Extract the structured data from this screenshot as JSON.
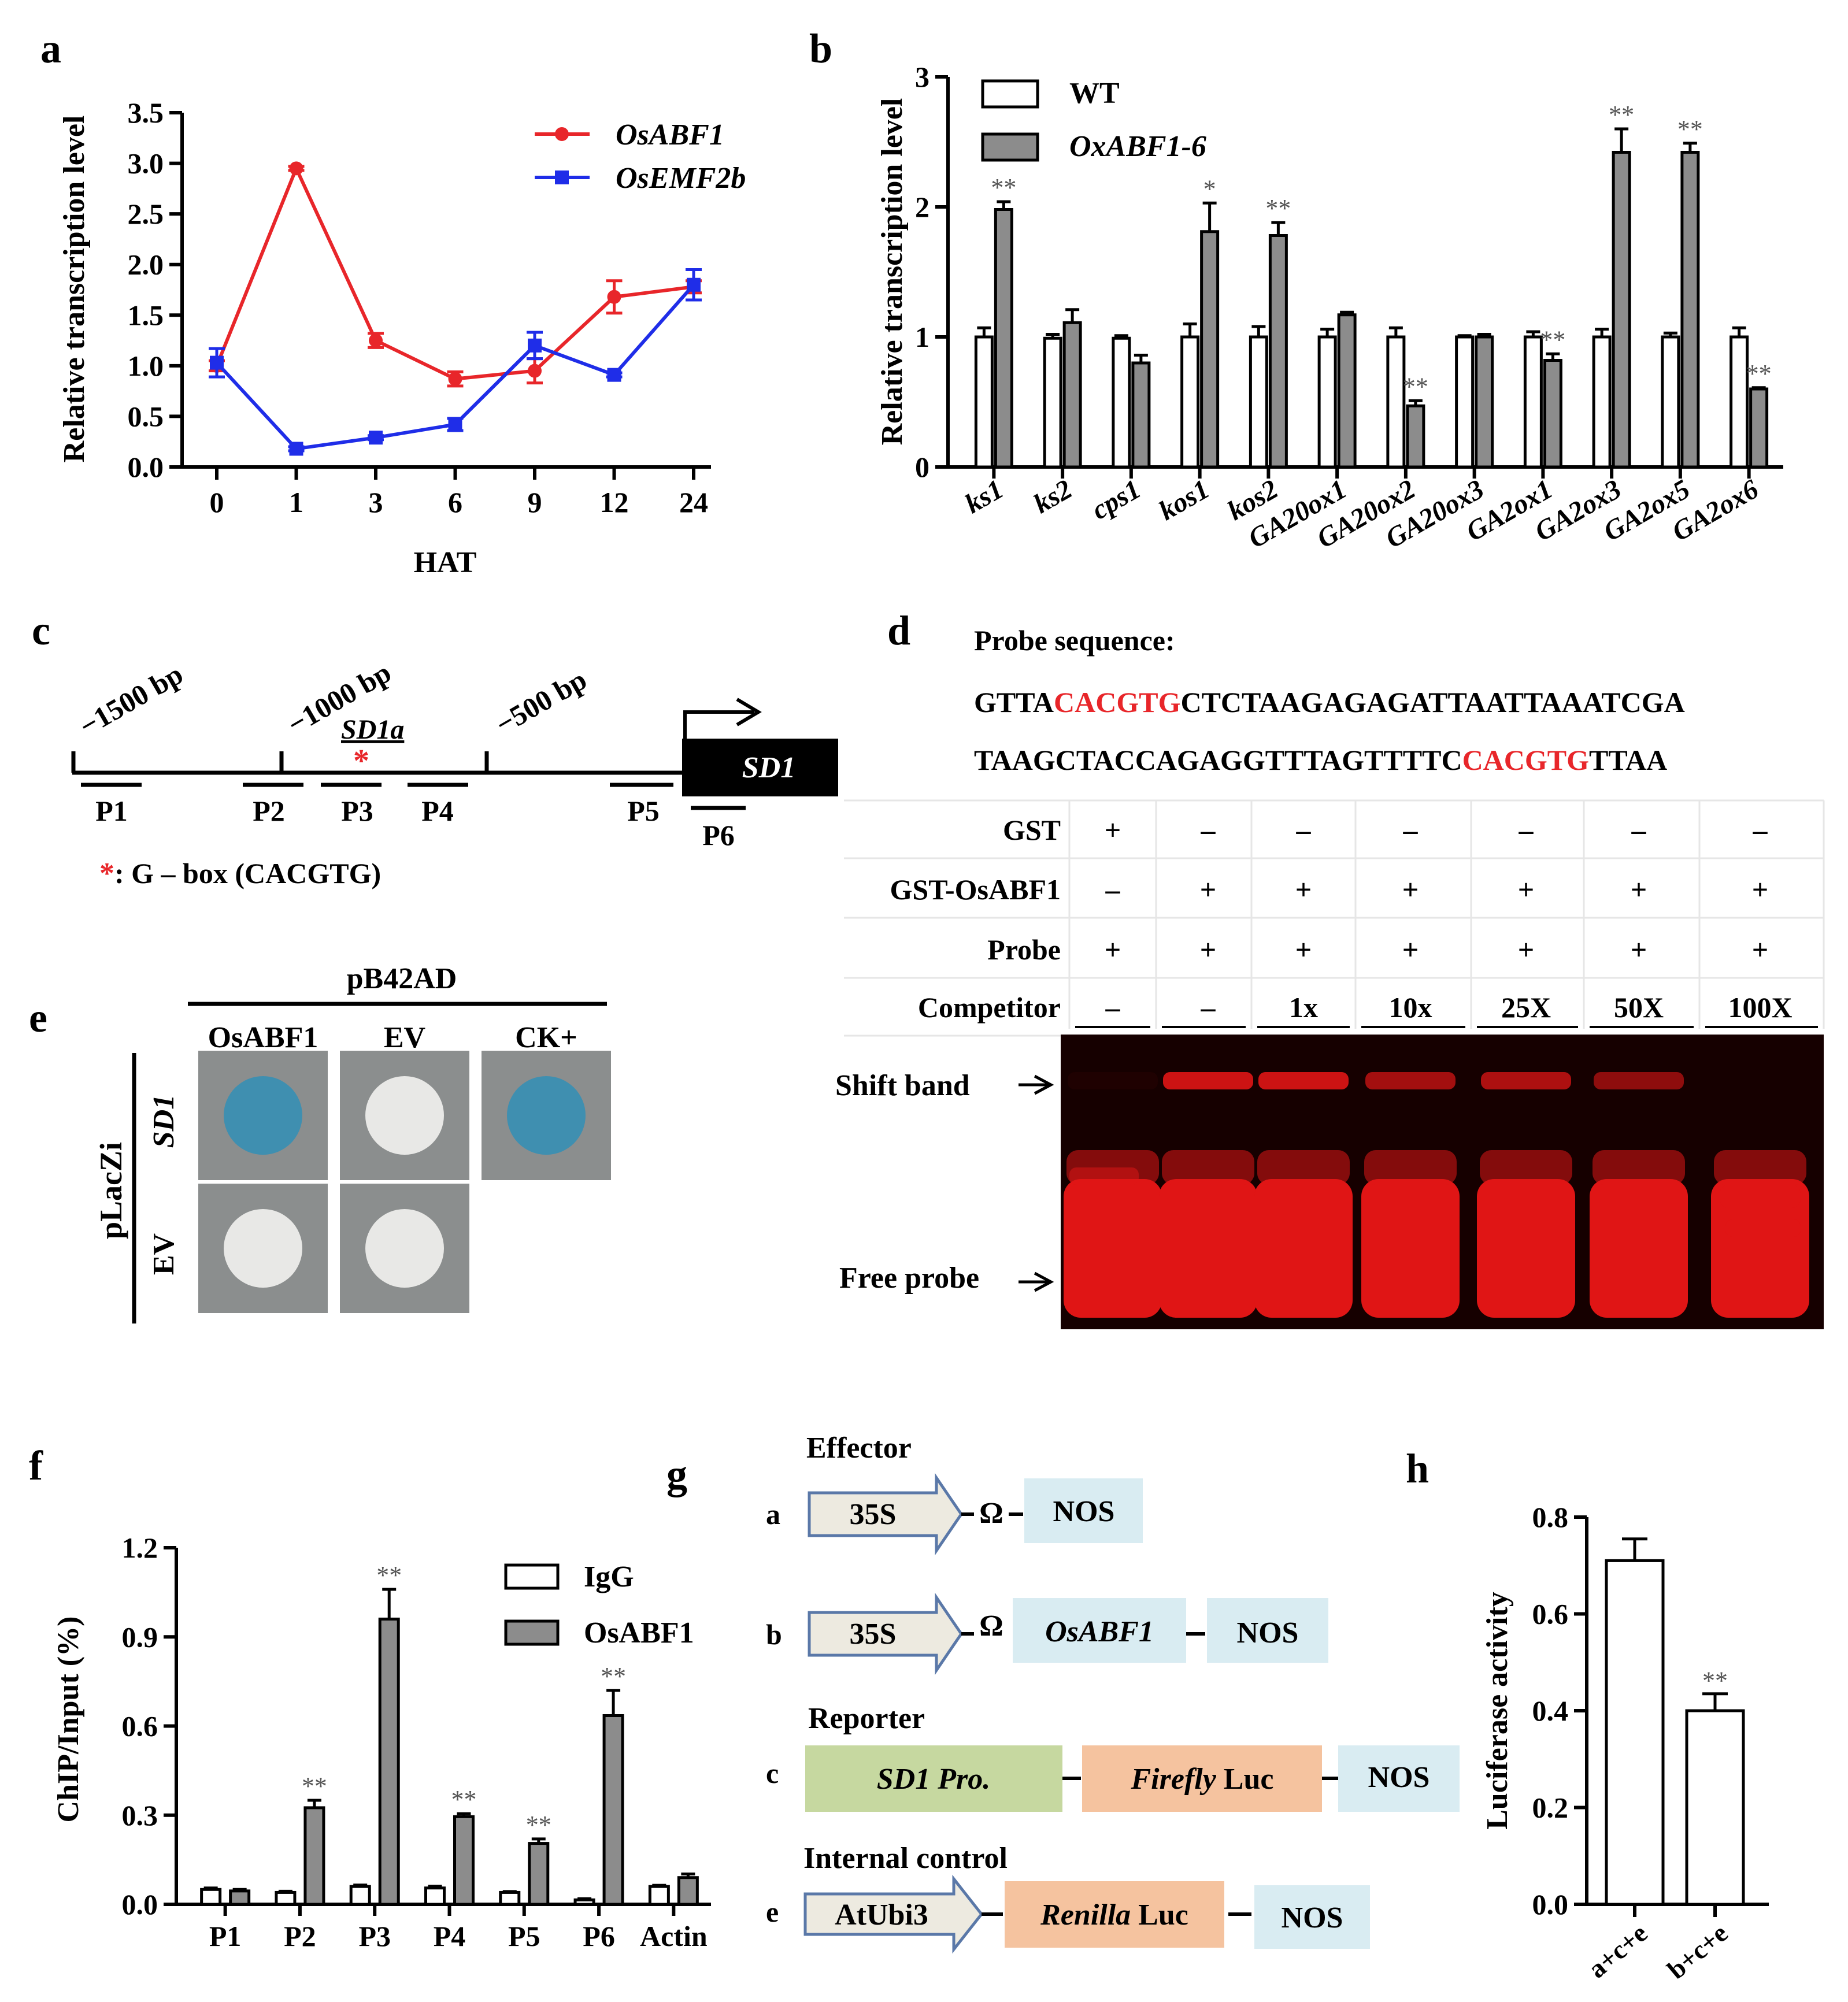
{
  "panels": {
    "a": "a",
    "b": "b",
    "c": "c",
    "d": "d",
    "e": "e",
    "f": "f",
    "g": "g",
    "h": "h"
  },
  "colors": {
    "red": "#e8262a",
    "blue": "#1f2de8",
    "bar_gray": "#8c8c8c",
    "gel_red": "#e01515",
    "gel_bg": "#160000",
    "yeast_blue": "#3f8fb0",
    "yeast_white": "#e8e8e6",
    "plate_gray": "#8b8e8e",
    "green_box": "#c6d8a0",
    "orange_box": "#f5c39f",
    "blue_box": "#d9ecf2",
    "arrow_fill": "#edeae0",
    "arrow_stroke": "#5a78a8"
  },
  "chart_data": [
    {
      "panel": "a",
      "type": "line",
      "xlabel": "HAT",
      "ylabel": "Relative transcription level",
      "categories": [
        "0",
        "1",
        "3",
        "6",
        "9",
        "12",
        "24"
      ],
      "ylim": [
        0,
        3.5
      ],
      "yticks": [
        "0.0",
        "0.5",
        "1.0",
        "1.5",
        "2.0",
        "2.5",
        "3.0",
        "3.5"
      ],
      "legend_placement": "top-right",
      "series": [
        {
          "name": "OsABF1",
          "color": "#e8262a",
          "marker": "circle",
          "values": [
            1.0,
            2.95,
            1.25,
            0.87,
            0.95,
            1.68,
            1.78
          ],
          "errors": [
            0.05,
            0.02,
            0.07,
            0.07,
            0.12,
            0.16,
            0.06
          ]
        },
        {
          "name": "OsEMF2b",
          "color": "#1f2de8",
          "marker": "square",
          "values": [
            1.03,
            0.18,
            0.29,
            0.42,
            1.2,
            0.91,
            1.8
          ],
          "errors": [
            0.14,
            0.02,
            0.02,
            0.06,
            0.13,
            0.02,
            0.15
          ]
        }
      ]
    },
    {
      "panel": "b",
      "type": "bar",
      "ylabel": "Relative transcription level",
      "categories": [
        "ks1",
        "ks2",
        "cps1",
        "kos1",
        "kos2",
        "GA20ox1",
        "GA20ox2",
        "GA20ox3",
        "GA2ox1",
        "GA2ox3",
        "GA2ox5",
        "GA2ox6"
      ],
      "ylim": [
        0,
        3
      ],
      "yticks": [
        "0",
        "1",
        "2",
        "3"
      ],
      "legend_placement": "top-left",
      "series": [
        {
          "name": "WT",
          "fill": "white",
          "values": [
            1.0,
            0.99,
            0.99,
            1.0,
            1.0,
            1.0,
            1.0,
            1.0,
            1.0,
            1.0,
            1.0,
            1.0
          ],
          "errors": [
            0.07,
            0.03,
            0.02,
            0.1,
            0.08,
            0.06,
            0.07,
            0.01,
            0.04,
            0.06,
            0.03,
            0.07
          ]
        },
        {
          "name": "OxABF1-6",
          "fill": "gray",
          "values": [
            1.98,
            1.11,
            0.8,
            1.81,
            1.78,
            1.17,
            0.47,
            1.0,
            0.82,
            2.42,
            2.42,
            0.6
          ],
          "errors": [
            0.06,
            0.1,
            0.06,
            0.22,
            0.1,
            0.02,
            0.04,
            0.02,
            0.05,
            0.18,
            0.07,
            0.01
          ],
          "significance": [
            "**",
            "",
            "",
            "*",
            "**",
            "",
            "**",
            "",
            "**",
            "**",
            "**",
            "**"
          ]
        }
      ]
    },
    {
      "panel": "f",
      "type": "bar",
      "ylabel": "ChIP/Input (%)",
      "categories": [
        "P1",
        "P2",
        "P3",
        "P4",
        "P5",
        "P6",
        "Actin"
      ],
      "ylim": [
        0,
        1.2
      ],
      "yticks": [
        "0.0",
        "0.3",
        "0.6",
        "0.9",
        "1.2"
      ],
      "legend_placement": "top-right",
      "series": [
        {
          "name": "IgG",
          "fill": "white",
          "values": [
            0.05,
            0.04,
            0.06,
            0.055,
            0.04,
            0.015,
            0.06
          ],
          "errors": [
            0.005,
            0.004,
            0.005,
            0.006,
            0.003,
            0.004,
            0.004
          ]
        },
        {
          "name": "OsABF1",
          "fill": "gray",
          "values": [
            0.045,
            0.325,
            0.96,
            0.295,
            0.205,
            0.635,
            0.09
          ],
          "errors": [
            0.005,
            0.025,
            0.1,
            0.01,
            0.015,
            0.085,
            0.012
          ],
          "significance": [
            "",
            "**",
            "**",
            "**",
            "**",
            "**",
            ""
          ]
        }
      ]
    },
    {
      "panel": "h",
      "type": "bar",
      "ylabel": "Luciferase activity",
      "categories": [
        "a+c+e",
        "b+c+e"
      ],
      "ylim": [
        0,
        0.8
      ],
      "yticks": [
        "0.0",
        "0.2",
        "0.4",
        "0.6",
        "0.8"
      ],
      "series": [
        {
          "fill": "white",
          "values": [
            0.71,
            0.4
          ],
          "errors": [
            0.045,
            0.035
          ],
          "significance": [
            "",
            "**"
          ]
        }
      ]
    }
  ],
  "panel_c": {
    "positions": [
      "−1500 bp",
      "−1000 bp",
      "−500 bp"
    ],
    "element": "SD1a",
    "gene": "SD1",
    "primers": [
      "P1",
      "P2",
      "P3",
      "P4",
      "P5",
      "P6"
    ],
    "note_star": "*",
    "note_text": ":  G – box (CACGTG)"
  },
  "panel_d": {
    "title": "Probe sequence:",
    "seq1": [
      {
        "t": "GTTA",
        "red": false
      },
      {
        "t": "CACGTG",
        "red": true
      },
      {
        "t": "CTCTAAGAGAGATTAATTAAATCGA",
        "red": false
      }
    ],
    "seq2": [
      {
        "t": "TAAGCTACCAGAGGTTTAGTTTTC",
        "red": false
      },
      {
        "t": "CACGTG",
        "red": true
      },
      {
        "t": "TTAA",
        "red": false
      }
    ],
    "rows": [
      {
        "label": "GST",
        "cells": [
          "+",
          "–",
          "–",
          "–",
          "–",
          "–",
          "–"
        ]
      },
      {
        "label": "GST-OsABF1",
        "cells": [
          "–",
          "+",
          "+",
          "+",
          "+",
          "+",
          "+"
        ]
      },
      {
        "label": "Probe",
        "cells": [
          "+",
          "+",
          "+",
          "+",
          "+",
          "+",
          "+"
        ]
      },
      {
        "label": "Competitor",
        "cells": [
          "–",
          "–",
          "1x",
          "10x",
          "25X",
          "50X",
          "100X"
        ]
      }
    ],
    "shift_label": "Shift  band",
    "free_label": "Free probe",
    "shift_intensity": [
      0.05,
      0.9,
      0.9,
      0.7,
      0.75,
      0.6,
      0.0
    ]
  },
  "panel_e": {
    "top_label": "pB42AD",
    "columns": [
      "OsABF1",
      "EV",
      "CK+"
    ],
    "side_label": "pLacZi",
    "rows": [
      "SD1",
      "EV"
    ],
    "results": [
      [
        "blue",
        "white",
        "blue"
      ],
      [
        "white",
        "white",
        ""
      ]
    ]
  },
  "panel_g": {
    "effector": "Effector",
    "reporter": "Reporter",
    "internal": "Internal control",
    "a": "a",
    "b": "b",
    "c": "c",
    "e": "e",
    "p35s": "35S",
    "omega": "Ω",
    "nos": "NOS",
    "osabf1": "OsABF1",
    "sd1pro": "SD1 Pro.",
    "firefly": "Firefly",
    "luc": " Luc",
    "atubi3": "AtUbi3",
    "renilla": "Renilla"
  }
}
